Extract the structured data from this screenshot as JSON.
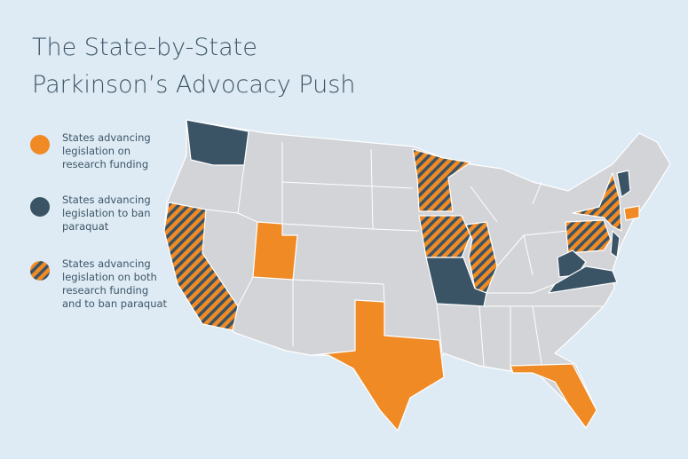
{
  "header": {
    "title_lines": [
      "The State-by-State",
      "Parkinson’s Advocacy Push"
    ]
  },
  "legend": [
    {
      "lines": [
        "States advancing",
        "legislation on",
        "research funding"
      ]
    },
    {
      "lines": [
        "States advancing",
        "legislation to ban",
        "paraquat"
      ]
    },
    {
      "lines": [
        "States advancing",
        "legislation on both",
        "research funding",
        "and to ban paraquat"
      ]
    }
  ]
}
